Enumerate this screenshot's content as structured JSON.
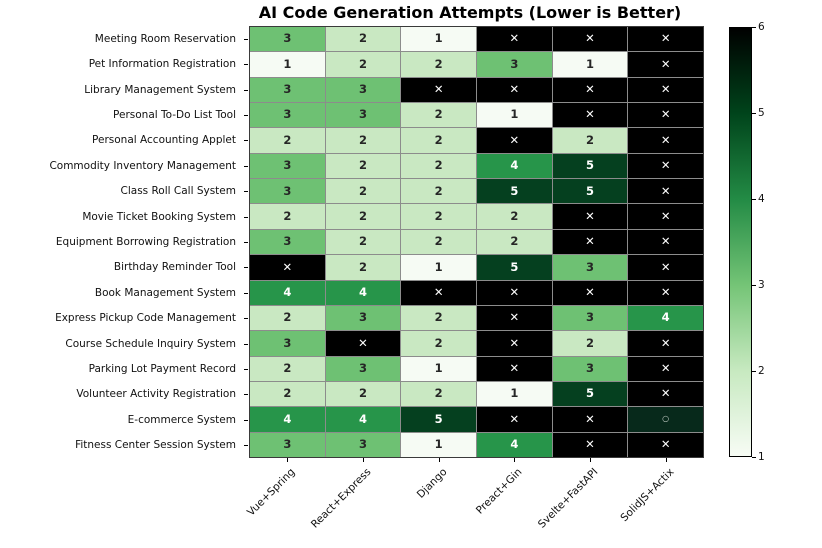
{
  "chart_data": {
    "type": "heatmap",
    "title": "AI Code Generation Attempts (Lower is Better)",
    "rows": [
      "Meeting Room Reservation",
      "Pet Information Registration",
      "Library Management System",
      "Personal To-Do List Tool",
      "Personal Accounting Applet",
      "Commodity Inventory Management",
      "Class Roll Call System",
      "Movie Ticket Booking System",
      "Equipment Borrowing Registration",
      "Birthday Reminder Tool",
      "Book Management System",
      "Express Pickup Code Management",
      "Course Schedule Inquiry System",
      "Parking Lot Payment Record",
      "Volunteer Activity Registration",
      "E-commerce System",
      "Fitness Center Session System"
    ],
    "columns": [
      "Vue+Spring",
      "React+Express",
      "Django",
      "Preact+Gin",
      "Svelte+FastAPI",
      "SolidJS+Actix"
    ],
    "values": [
      [
        3,
        2,
        1,
        "x",
        "x",
        "x"
      ],
      [
        1,
        2,
        2,
        3,
        1,
        "x"
      ],
      [
        3,
        3,
        "x",
        "x",
        "x",
        "x"
      ],
      [
        3,
        3,
        2,
        1,
        "x",
        "x"
      ],
      [
        2,
        2,
        2,
        "x",
        2,
        "x"
      ],
      [
        3,
        2,
        2,
        4,
        5,
        "x"
      ],
      [
        3,
        2,
        2,
        5,
        5,
        "x"
      ],
      [
        2,
        2,
        2,
        2,
        "x",
        "x"
      ],
      [
        3,
        2,
        2,
        2,
        "x",
        "x"
      ],
      [
        "x",
        2,
        1,
        5,
        3,
        "x"
      ],
      [
        4,
        4,
        "x",
        "x",
        "x",
        "x"
      ],
      [
        2,
        3,
        2,
        "x",
        3,
        4
      ],
      [
        3,
        "x",
        2,
        "x",
        2,
        "x"
      ],
      [
        2,
        3,
        1,
        "x",
        3,
        "x"
      ],
      [
        2,
        2,
        2,
        1,
        5,
        "x"
      ],
      [
        4,
        4,
        5,
        "x",
        "x",
        "o"
      ],
      [
        3,
        3,
        1,
        4,
        "x",
        "x"
      ]
    ],
    "failed_symbol": "✕",
    "circle_symbol": "○",
    "value_range": [
      1,
      6
    ],
    "colorbar_ticks": [
      1,
      2,
      3,
      4,
      5,
      6
    ],
    "legend_position": "right",
    "grid": true,
    "cell_colors": {
      "1": "#f6fbf4",
      "2": "#c9e8c2",
      "3": "#6ec173",
      "4": "#27954a",
      "5": "#05401f",
      "x": "#000000",
      "o": "#07291b"
    },
    "text_colors": {
      "1": "#262626",
      "2": "#262626",
      "3": "#262626",
      "4": "#ffffff",
      "5": "#ffffff",
      "x": "#ffffff",
      "o": "#c3cdc6"
    },
    "colorbar_gradient": [
      "#f7fcf5",
      "#c7e9c0",
      "#74c476",
      "#238b45",
      "#00441b",
      "#000000"
    ]
  }
}
